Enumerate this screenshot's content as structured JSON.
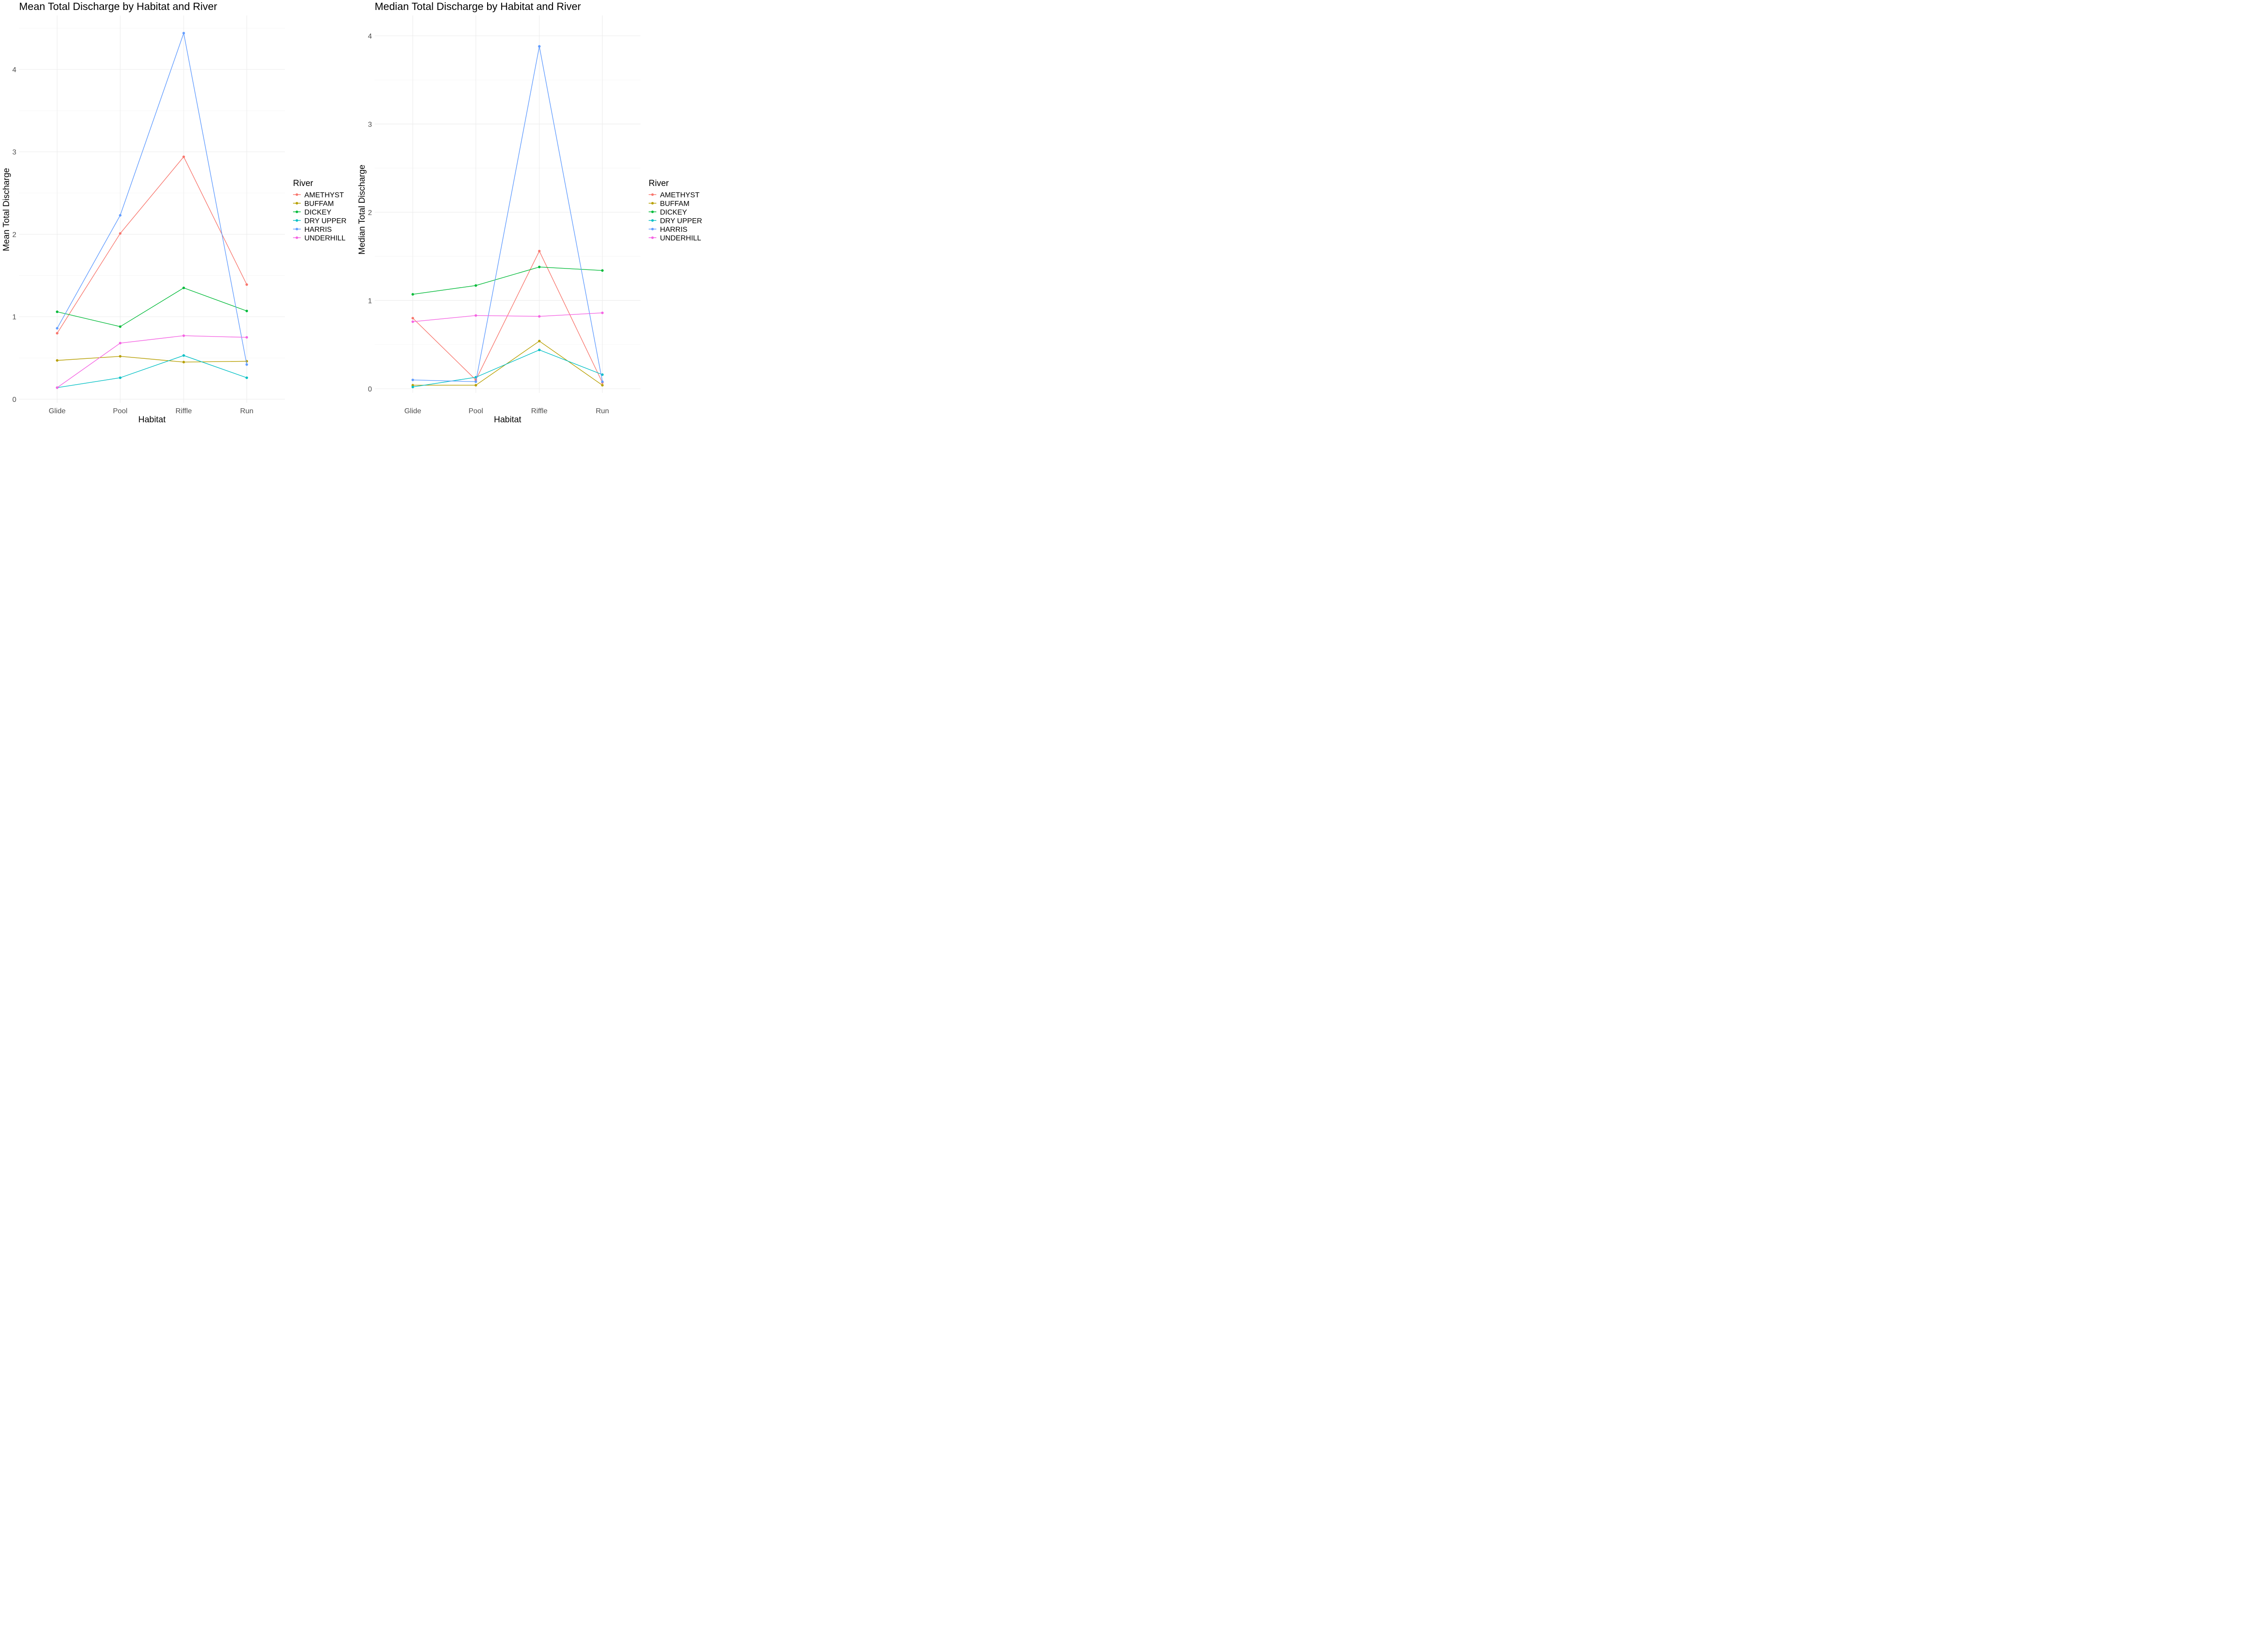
{
  "colors": {
    "AMETHYST": "#F8766D",
    "BUFFAM": "#B79F00",
    "DICKEY": "#00BA38",
    "DRY UPPER": "#00BFC4",
    "HARRIS": "#619CFF",
    "UNDERHILL": "#F564E3"
  },
  "chart_data": [
    {
      "type": "line",
      "title": "Mean Total Discharge by Habitat and River",
      "xlabel": "Habitat",
      "ylabel": "Mean Total Discharge",
      "categories": [
        "Glide",
        "Pool",
        "Riffle",
        "Run"
      ],
      "ylim": [
        0,
        4.5
      ],
      "yticks": [
        0,
        1,
        2,
        3,
        4
      ],
      "legend_title": "River",
      "legend_position": "right",
      "grid": true,
      "series": [
        {
          "name": "AMETHYST",
          "values": [
            0.8,
            2.01,
            2.94,
            1.39
          ]
        },
        {
          "name": "BUFFAM",
          "values": [
            0.47,
            0.52,
            0.45,
            0.46
          ]
        },
        {
          "name": "DICKEY",
          "values": [
            1.06,
            0.88,
            1.35,
            1.07
          ]
        },
        {
          "name": "DRY UPPER",
          "values": [
            0.14,
            0.26,
            0.53,
            0.26
          ]
        },
        {
          "name": "HARRIS",
          "values": [
            0.86,
            2.23,
            4.44,
            0.42
          ]
        },
        {
          "name": "UNDERHILL",
          "values": [
            0.14,
            0.68,
            0.77,
            0.75
          ]
        }
      ]
    },
    {
      "type": "line",
      "title": "Median Total Discharge by Habitat and River",
      "xlabel": "Habitat",
      "ylabel": "Median Total Discharge",
      "categories": [
        "Glide",
        "Pool",
        "Riffle",
        "Run"
      ],
      "ylim": [
        0,
        4
      ],
      "yticks": [
        0,
        1,
        2,
        3,
        4
      ],
      "legend_title": "River",
      "legend_position": "right",
      "grid": true,
      "series": [
        {
          "name": "AMETHYST",
          "values": [
            0.8,
            0.1,
            1.56,
            0.07
          ]
        },
        {
          "name": "BUFFAM",
          "values": [
            0.04,
            0.04,
            0.54,
            0.04
          ]
        },
        {
          "name": "DICKEY",
          "values": [
            1.07,
            1.17,
            1.38,
            1.34
          ]
        },
        {
          "name": "DRY UPPER",
          "values": [
            0.02,
            0.13,
            0.44,
            0.16
          ]
        },
        {
          "name": "HARRIS",
          "values": [
            0.1,
            0.08,
            3.88,
            0.08
          ]
        },
        {
          "name": "UNDERHILL",
          "values": [
            0.76,
            0.83,
            0.82,
            0.86
          ]
        }
      ]
    }
  ]
}
